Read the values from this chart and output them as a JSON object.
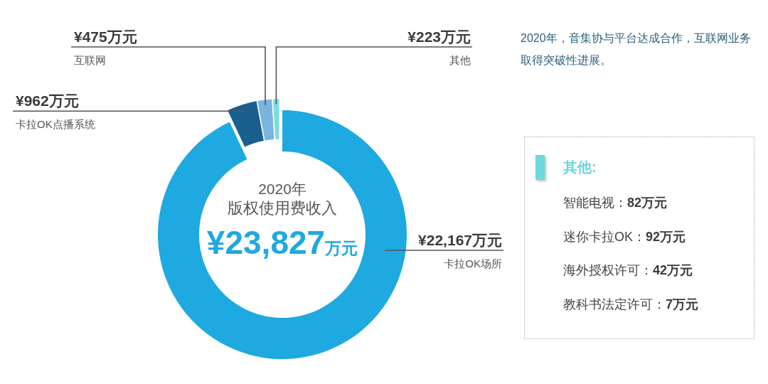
{
  "chart_data": [
    {
      "type": "donut",
      "title": "2020年",
      "subtitle": "版权使用费收入",
      "categories": [
        "卡拉OK场所",
        "卡拉OK点播系统",
        "互联网",
        "其他"
      ],
      "values": [
        22167,
        962,
        475,
        223
      ],
      "colors": [
        "#1ea9e0",
        "#1b5f8f",
        "#7ab4e0",
        "#7ddde0"
      ],
      "value_labels": [
        "¥22,167万元",
        "¥962万元",
        "¥475万元",
        "¥223万元"
      ],
      "annotations": [
        "¥23,827万元",
        "2020年，音集协与平台达成合作，互联网业务取得突破性进展。"
      ]
    },
    {
      "type": "other",
      "title": "其他:",
      "annotations": [
        "智能电视：82万元",
        "迷你卡拉OK：92万元",
        "海外授权许可：42万元",
        "教科书法定许可：7万元"
      ]
    }
  ]
}
